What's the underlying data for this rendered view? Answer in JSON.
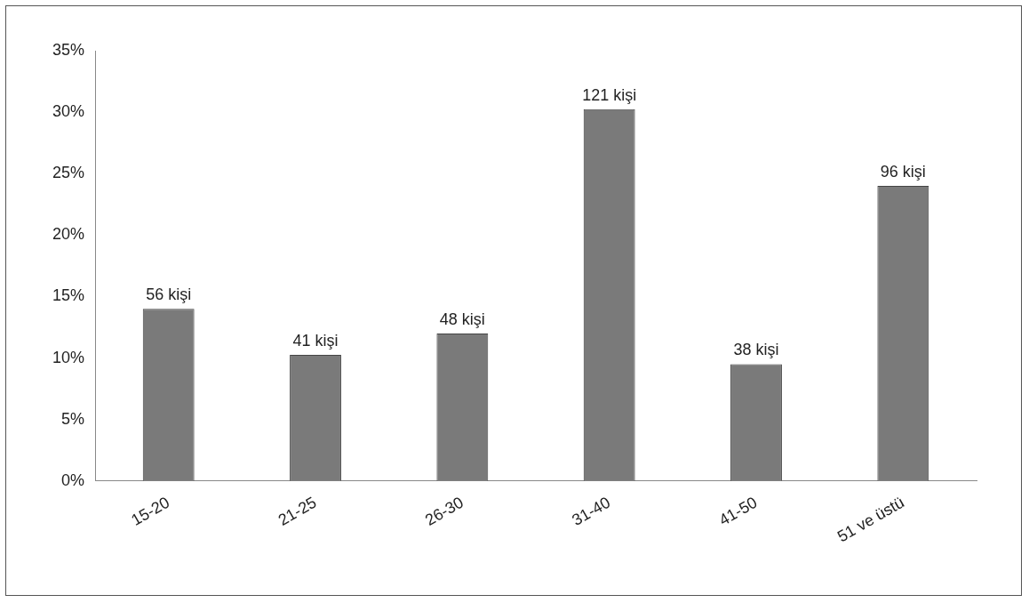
{
  "chart_data": {
    "type": "bar",
    "categories": [
      "15-20",
      "21-25",
      "26-30",
      "31-40",
      "41-50",
      "51 ve üstü"
    ],
    "values": [
      14,
      10.25,
      12,
      30.25,
      9.5,
      24
    ],
    "annotations": [
      {
        "text": "56 kişi",
        "x": "15-20",
        "y": 14
      },
      {
        "text": "41 kişi",
        "x": "21-25",
        "y": 10.25
      },
      {
        "text": "48 kişi",
        "x": "26-30",
        "y": 12
      },
      {
        "text": "121 kişi",
        "x": "31-40",
        "y": 30.25
      },
      {
        "text": "38 kişi",
        "x": "41-50",
        "y": 9.5
      },
      {
        "text": "96 kişi",
        "x": "51 ve üstü",
        "y": 24
      }
    ],
    "color": "#7a7a7a",
    "ylim": [
      0,
      35
    ],
    "yticks": [
      {
        "value": 0,
        "label": "0%"
      },
      {
        "value": 5,
        "label": "5%"
      },
      {
        "value": 10,
        "label": "10%"
      },
      {
        "value": 15,
        "label": "15%"
      },
      {
        "value": 20,
        "label": "20%"
      },
      {
        "value": 25,
        "label": "25%"
      },
      {
        "value": 30,
        "label": "30%"
      },
      {
        "value": 35,
        "label": "35%"
      }
    ],
    "grid": false,
    "legend": false
  }
}
